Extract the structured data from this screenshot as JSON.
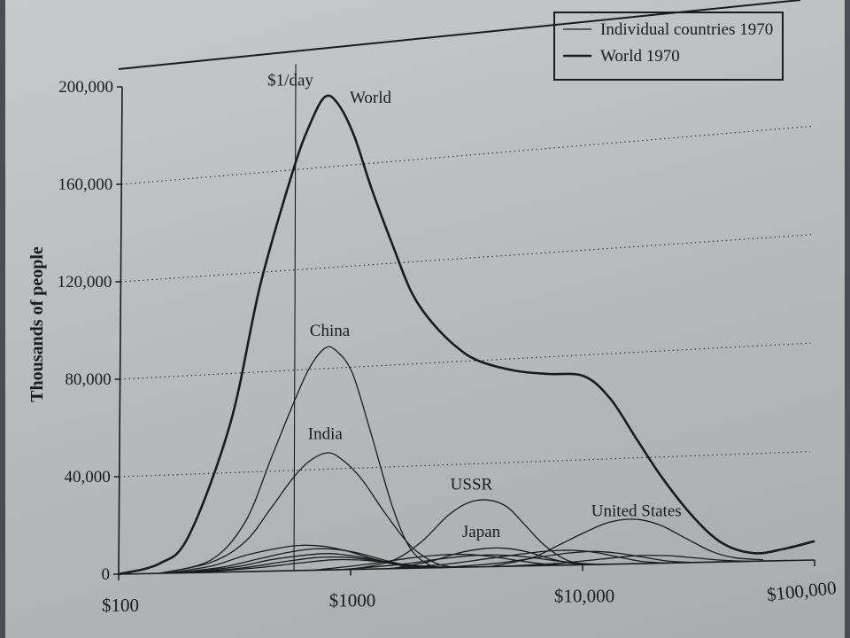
{
  "chart_data": {
    "type": "line",
    "x_scale": "log",
    "xlim": [
      100,
      100000
    ],
    "ylim": [
      0,
      200000
    ],
    "ylabel": "Thousands of people",
    "grid": "horizontal dotted",
    "legend_position": "top-right",
    "legend": {
      "individual": "Individual countries 1970",
      "world": "World 1970"
    },
    "x_ticks": [
      {
        "value": 100,
        "label": "$100"
      },
      {
        "value": 1000,
        "label": "$1000"
      },
      {
        "value": 10000,
        "label": "$10,000"
      },
      {
        "value": 100000,
        "label": "$100,000"
      }
    ],
    "y_ticks": [
      {
        "value": 0,
        "label": "0"
      },
      {
        "value": 40000,
        "label": "40,000"
      },
      {
        "value": 80000,
        "label": "80,000"
      },
      {
        "value": 120000,
        "label": "120,000"
      },
      {
        "value": 160000,
        "label": "160,000"
      },
      {
        "value": 200000,
        "label": "200,000"
      }
    ],
    "reference_line": {
      "x": 570,
      "label": "$1/day"
    },
    "series": [
      {
        "name": "World",
        "kind": "world",
        "label_at": {
          "x": 1180,
          "y": 184000
        },
        "points": [
          [
            100,
            0
          ],
          [
            150,
            4000
          ],
          [
            200,
            15000
          ],
          [
            300,
            60000
          ],
          [
            400,
            115000
          ],
          [
            550,
            160000
          ],
          [
            650,
            178000
          ],
          [
            750,
            188000
          ],
          [
            850,
            185000
          ],
          [
            1000,
            172000
          ],
          [
            1200,
            150000
          ],
          [
            1500,
            126000
          ],
          [
            1800,
            108000
          ],
          [
            2200,
            96000
          ],
          [
            2800,
            86000
          ],
          [
            3500,
            80000
          ],
          [
            5000,
            75500
          ],
          [
            7000,
            73500
          ],
          [
            10000,
            72000
          ],
          [
            13000,
            63000
          ],
          [
            17000,
            47000
          ],
          [
            22000,
            32000
          ],
          [
            30000,
            17000
          ],
          [
            40000,
            7000
          ],
          [
            55000,
            3000
          ],
          [
            75000,
            4500
          ],
          [
            100000,
            7000
          ]
        ]
      },
      {
        "name": "China",
        "kind": "individual",
        "label_at": {
          "x": 800,
          "y": 93000
        },
        "points": [
          [
            150,
            0
          ],
          [
            250,
            5000
          ],
          [
            350,
            20000
          ],
          [
            450,
            45000
          ],
          [
            550,
            65000
          ],
          [
            650,
            80000
          ],
          [
            760,
            88000
          ],
          [
            850,
            87000
          ],
          [
            1000,
            78000
          ],
          [
            1200,
            55000
          ],
          [
            1500,
            25000
          ],
          [
            1800,
            8000
          ],
          [
            2200,
            1000
          ],
          [
            2600,
            0
          ]
        ]
      },
      {
        "name": "India",
        "kind": "individual",
        "label_at": {
          "x": 770,
          "y": 52000
        },
        "points": [
          [
            150,
            0
          ],
          [
            250,
            4000
          ],
          [
            350,
            12000
          ],
          [
            450,
            25000
          ],
          [
            550,
            36000
          ],
          [
            650,
            43000
          ],
          [
            780,
            46500
          ],
          [
            900,
            44000
          ],
          [
            1100,
            36000
          ],
          [
            1400,
            22000
          ],
          [
            1800,
            9000
          ],
          [
            2300,
            2000
          ],
          [
            2800,
            0
          ]
        ]
      },
      {
        "name": "USSR",
        "kind": "individual",
        "label_at": {
          "x": 3300,
          "y": 30000
        },
        "points": [
          [
            1000,
            0
          ],
          [
            1500,
            3000
          ],
          [
            2000,
            10000
          ],
          [
            2600,
            20000
          ],
          [
            3200,
            25000
          ],
          [
            3900,
            25800
          ],
          [
            4700,
            23000
          ],
          [
            5600,
            16000
          ],
          [
            6800,
            8000
          ],
          [
            8500,
            2000
          ],
          [
            10500,
            0
          ]
        ]
      },
      {
        "name": "Japan",
        "kind": "individual",
        "label_at": {
          "x": 3650,
          "y": 11500
        },
        "points": [
          [
            1500,
            0
          ],
          [
            2200,
            2500
          ],
          [
            2900,
            5500
          ],
          [
            3700,
            7000
          ],
          [
            4600,
            7000
          ],
          [
            5700,
            5500
          ],
          [
            7000,
            3000
          ],
          [
            8500,
            1000
          ],
          [
            10000,
            0
          ]
        ]
      },
      {
        "name": "United States",
        "kind": "individual",
        "label_at": {
          "x": 17000,
          "y": 18000
        },
        "points": [
          [
            4000,
            0
          ],
          [
            6000,
            3000
          ],
          [
            8000,
            8000
          ],
          [
            10000,
            12000
          ],
          [
            12500,
            15500
          ],
          [
            15000,
            16800
          ],
          [
            18000,
            16500
          ],
          [
            22000,
            14000
          ],
          [
            28000,
            9000
          ],
          [
            36000,
            4000
          ],
          [
            45000,
            1500
          ],
          [
            60000,
            500
          ]
        ]
      },
      {
        "kind": "individual",
        "points": [
          [
            160,
            0
          ],
          [
            250,
            2500
          ],
          [
            350,
            6500
          ],
          [
            480,
            9000
          ],
          [
            600,
            10000
          ],
          [
            750,
            9500
          ],
          [
            950,
            7500
          ],
          [
            1250,
            4000
          ],
          [
            1700,
            1000
          ],
          [
            2200,
            0
          ]
        ]
      },
      {
        "kind": "individual",
        "points": [
          [
            170,
            0
          ],
          [
            280,
            2000
          ],
          [
            400,
            5000
          ],
          [
            550,
            7500
          ],
          [
            700,
            8500
          ],
          [
            880,
            8000
          ],
          [
            1100,
            6200
          ],
          [
            1450,
            3000
          ],
          [
            1900,
            600
          ],
          [
            2500,
            0
          ]
        ]
      },
      {
        "kind": "individual",
        "points": [
          [
            190,
            0
          ],
          [
            320,
            2000
          ],
          [
            450,
            4500
          ],
          [
            620,
            6000
          ],
          [
            800,
            6500
          ],
          [
            1000,
            5500
          ],
          [
            1300,
            3500
          ],
          [
            1700,
            1200
          ],
          [
            2300,
            0
          ]
        ]
      },
      {
        "kind": "individual",
        "points": [
          [
            200,
            0
          ],
          [
            340,
            1500
          ],
          [
            500,
            3500
          ],
          [
            700,
            5000
          ],
          [
            900,
            5000
          ],
          [
            1150,
            4000
          ],
          [
            1500,
            2000
          ],
          [
            2000,
            400
          ],
          [
            2600,
            0
          ]
        ]
      },
      {
        "kind": "individual",
        "points": [
          [
            220,
            0
          ],
          [
            400,
            1500
          ],
          [
            600,
            3000
          ],
          [
            850,
            4000
          ],
          [
            1150,
            3500
          ],
          [
            1500,
            2200
          ],
          [
            2000,
            800
          ],
          [
            2800,
            0
          ]
        ]
      },
      {
        "kind": "individual",
        "points": [
          [
            700,
            0
          ],
          [
            1200,
            2000
          ],
          [
            1800,
            4000
          ],
          [
            2500,
            5000
          ],
          [
            3300,
            4800
          ],
          [
            4300,
            3500
          ],
          [
            5500,
            1800
          ],
          [
            7000,
            500
          ],
          [
            9000,
            0
          ]
        ]
      },
      {
        "kind": "individual",
        "points": [
          [
            900,
            0
          ],
          [
            1600,
            1500
          ],
          [
            2500,
            3500
          ],
          [
            3500,
            4500
          ],
          [
            4800,
            4200
          ],
          [
            6200,
            3000
          ],
          [
            8000,
            1500
          ],
          [
            10500,
            300
          ],
          [
            13000,
            0
          ]
        ]
      },
      {
        "kind": "individual",
        "points": [
          [
            1400,
            0
          ],
          [
            2500,
            1200
          ],
          [
            3800,
            3000
          ],
          [
            5300,
            4500
          ],
          [
            7000,
            5500
          ],
          [
            9000,
            5600
          ],
          [
            11500,
            4500
          ],
          [
            14500,
            2500
          ],
          [
            18000,
            800
          ],
          [
            23000,
            0
          ]
        ]
      },
      {
        "kind": "individual",
        "points": [
          [
            2500,
            0
          ],
          [
            4200,
            1200
          ],
          [
            6200,
            3000
          ],
          [
            8500,
            4500
          ],
          [
            11000,
            5000
          ],
          [
            14000,
            4200
          ],
          [
            18000,
            2500
          ],
          [
            23000,
            800
          ],
          [
            30000,
            0
          ]
        ]
      },
      {
        "kind": "individual",
        "points": [
          [
            4500,
            0
          ],
          [
            8000,
            800
          ],
          [
            12000,
            2000
          ],
          [
            17000,
            3000
          ],
          [
            23000,
            2800
          ],
          [
            30000,
            1800
          ],
          [
            40000,
            600
          ],
          [
            52000,
            0
          ]
        ]
      }
    ]
  }
}
